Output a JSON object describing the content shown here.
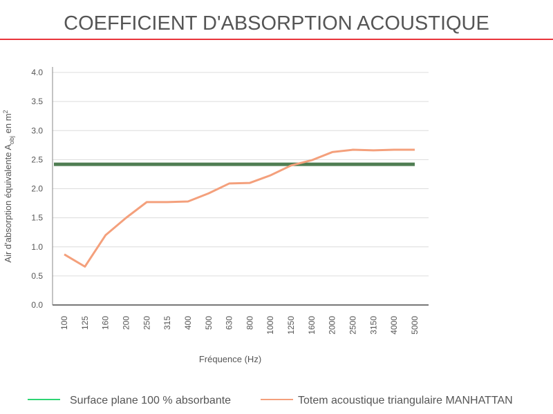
{
  "chart_data": {
    "type": "line",
    "title": "COEFFICIENT D'ABSORPTION ACOUSTIQUE",
    "title_color": "#e8343a",
    "x_label": "Fréquence (Hz)",
    "y_label": {
      "text": "Air d'absorption équivalente A",
      "subscript": "obj",
      "suffix": " en m",
      "superscript": "2"
    },
    "categories": [
      "100",
      "125",
      "160",
      "200",
      "250",
      "315",
      "400",
      "500",
      "630",
      "800",
      "1000",
      "1250",
      "1600",
      "2000",
      "2500",
      "3150",
      "4000",
      "5000"
    ],
    "series": [
      {
        "name": "Surface plane 100 % absorbante",
        "color": "#4f7d52",
        "legend_color": "#2ed573",
        "values": [
          2.42,
          2.42,
          2.42,
          2.42,
          2.42,
          2.42,
          2.42,
          2.42,
          2.42,
          2.42,
          2.42,
          2.42,
          2.42,
          2.42,
          2.42,
          2.42,
          2.42,
          2.42
        ]
      },
      {
        "name": "Totem acoustique triangulaire MANHATTAN",
        "color": "#f4a07c",
        "legend_color": "#f4a07c",
        "values": [
          0.87,
          0.66,
          1.2,
          1.5,
          1.77,
          1.77,
          1.78,
          1.92,
          2.09,
          2.1,
          2.23,
          2.4,
          2.49,
          2.63,
          2.67,
          2.66,
          2.67,
          2.67
        ]
      }
    ],
    "ylim": [
      0,
      4
    ],
    "yticks": [
      {
        "value": 0,
        "label": "0.0"
      },
      0.5,
      {
        "value": 1,
        "label": "1.0"
      },
      1.5,
      {
        "value": 2,
        "label": "2.0"
      },
      2.5,
      {
        "value": 3,
        "label": "3.0"
      },
      3.5,
      {
        "value": 4,
        "label": "4.0"
      }
    ],
    "grid": true
  }
}
